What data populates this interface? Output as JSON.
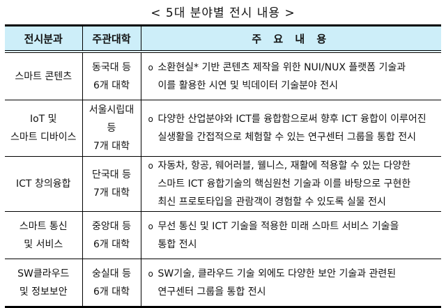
{
  "title": "< 5대 분야별 전시 내용 >",
  "table": {
    "headers": [
      "전시분과",
      "주관대학",
      "주 요 내 용"
    ],
    "rows": [
      {
        "field": [
          "스마트 콘텐츠"
        ],
        "university": [
          "동국대 등",
          "6개 대학"
        ],
        "bullet": "o",
        "content": [
          "소환현실* 기반 콘텐츠 제작을 위한 NUI/NUX 플랫폼 기술과",
          "이를 활용한 시연 및 빅데이터 기술분야 전시"
        ]
      },
      {
        "field": [
          "IoT 및",
          "스마트 디바이스"
        ],
        "university": [
          "서울시립대 등",
          "7개 대학"
        ],
        "bullet": "o",
        "content": [
          "다양한 산업분야와 ICT를 융합함으로써 향후 ICT 융합이 이루어진",
          "실생활을 간접적으로 체험할 수 있는 연구센터 그룹을 통합 전시"
        ]
      },
      {
        "field": [
          "ICT 창의융합"
        ],
        "university": [
          "단국대 등",
          "7개 대학"
        ],
        "bullet": "o",
        "content": [
          "자동차, 항공, 웨어러블, 웰니스, 재활에 적용할 수 있는 다양한",
          "스마트 ICT 융합기술의 핵심원천 기술과 이를 바탕으로 구현한",
          "최신 프로토타입을 관람객이 경험할 수 있도록 실물 전시"
        ]
      },
      {
        "field": [
          "스마트 통신",
          "및 서비스"
        ],
        "university": [
          "중앙대 등",
          "6개 대학"
        ],
        "bullet": "o",
        "content": [
          "무선 통신 및 ICT 기술을 적용한 미래 스마트 서비스 기술을",
          "통합 전시"
        ]
      },
      {
        "field": [
          "SW클라우드",
          "및 정보보안"
        ],
        "university": [
          "숭실대 등",
          "6개 대학"
        ],
        "bullet": "o",
        "content": [
          "SW기술, 클라우드 기술 외에도 다양한 보안 기술과 관련된",
          "연구센터 그룹을 통합 전시"
        ]
      }
    ]
  },
  "colors": {
    "header_bg": "#cdeef9"
  }
}
